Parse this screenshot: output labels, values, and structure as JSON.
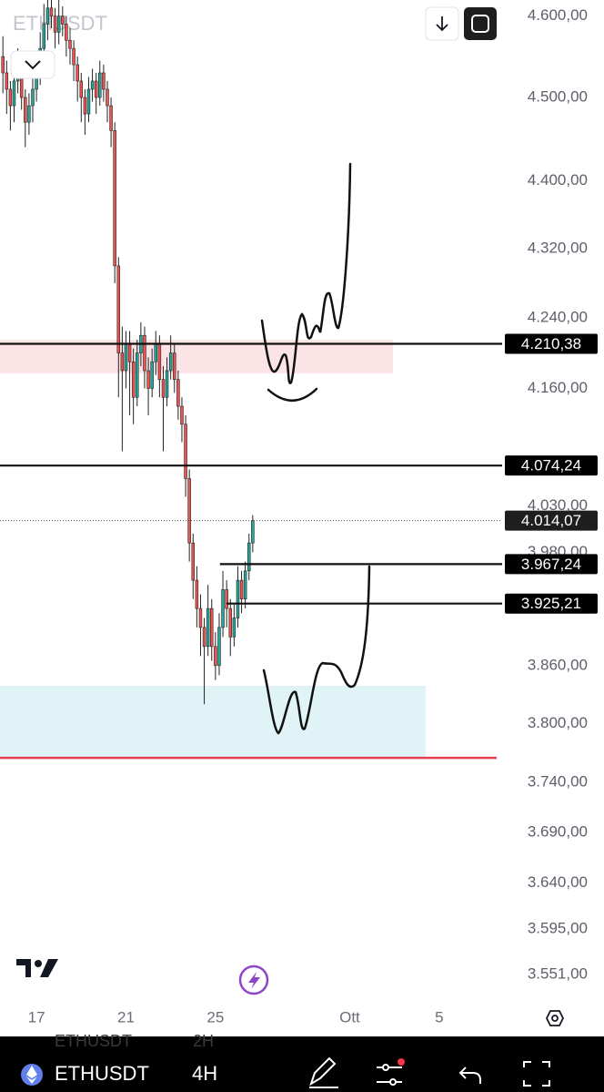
{
  "chart_data": {
    "type": "candlestick",
    "log_scale": true,
    "ylim": [
      3525,
      4620
    ],
    "xlim": [
      15.37,
      37.65
    ],
    "yticks": [
      {
        "value": 4600,
        "label": "4.600,00"
      },
      {
        "value": 4500,
        "label": "4.500,00"
      },
      {
        "value": 4400,
        "label": "4.400,00"
      },
      {
        "value": 4320,
        "label": "4.320,00"
      },
      {
        "value": 4240,
        "label": "4.240,00"
      },
      {
        "value": 4160,
        "label": "4.160,00"
      },
      {
        "value": 4030,
        "label": "4.030,00"
      },
      {
        "value": 3980,
        "label": "3.980,00"
      },
      {
        "value": 3860,
        "label": "3.860,00"
      },
      {
        "value": 3800,
        "label": "3.800,00"
      },
      {
        "value": 3740,
        "label": "3.740,00"
      },
      {
        "value": 3690,
        "label": "3.690,00"
      },
      {
        "value": 3640,
        "label": "3.640,00"
      },
      {
        "value": 3595,
        "label": "3.595,00"
      },
      {
        "value": 3551,
        "label": "3.551,00"
      }
    ],
    "xticks": [
      17,
      21,
      25,
      {
        "value": 31,
        "label": "Ott"
      },
      {
        "value": 35,
        "label": "5"
      }
    ],
    "up_color": "#26a69a",
    "down_color": "#ef5350",
    "wick_color": "#222222",
    "x": [
      15.5,
      15.667,
      15.833,
      16,
      16.167,
      16.333,
      16.5,
      16.667,
      16.833,
      17,
      17.167,
      17.333,
      17.5,
      17.667,
      17.833,
      18,
      18.167,
      18.333,
      18.5,
      18.667,
      18.833,
      19,
      19.167,
      19.333,
      19.5,
      19.667,
      19.833,
      20,
      20.167,
      20.333,
      20.5,
      20.667,
      20.833,
      21,
      21.167,
      21.333,
      21.5,
      21.667,
      21.833,
      22,
      22.167,
      22.333,
      22.5,
      22.667,
      22.833,
      23,
      23.167,
      23.333,
      23.5,
      23.667,
      23.833,
      24,
      24.167,
      24.333,
      24.5,
      24.667,
      24.833,
      25,
      25.167,
      25.333,
      25.5,
      25.667,
      25.833,
      26,
      26.167,
      26.333,
      26.5,
      26.667
    ],
    "candles": [
      [
        4550,
        4575,
        4505,
        4530
      ],
      [
        4530,
        4545,
        4480,
        4510
      ],
      [
        4510,
        4520,
        4460,
        4490
      ],
      [
        4490,
        4535,
        4470,
        4520
      ],
      [
        4520,
        4560,
        4505,
        4540
      ],
      [
        4540,
        4550,
        4485,
        4500
      ],
      [
        4500,
        4510,
        4440,
        4470
      ],
      [
        4470,
        4505,
        4455,
        4490
      ],
      [
        4490,
        4525,
        4470,
        4510
      ],
      [
        4510,
        4550,
        4495,
        4530
      ],
      [
        4530,
        4580,
        4515,
        4560
      ],
      [
        4560,
        4615,
        4545,
        4590
      ],
      [
        4590,
        4625,
        4570,
        4610
      ],
      [
        4610,
        4625,
        4585,
        4600
      ],
      [
        4600,
        4610,
        4560,
        4580
      ],
      [
        4580,
        4620,
        4565,
        4600
      ],
      [
        4600,
        4612,
        4575,
        4590
      ],
      [
        4590,
        4600,
        4550,
        4570
      ],
      [
        4570,
        4585,
        4540,
        4560
      ],
      [
        4560,
        4570,
        4520,
        4540
      ],
      [
        4540,
        4550,
        4495,
        4520
      ],
      [
        4520,
        4530,
        4470,
        4500
      ],
      [
        4500,
        4510,
        4455,
        4480
      ],
      [
        4480,
        4525,
        4470,
        4510
      ],
      [
        4510,
        4535,
        4495,
        4520
      ],
      [
        4520,
        4530,
        4480,
        4500
      ],
      [
        4500,
        4545,
        4490,
        4530
      ],
      [
        4530,
        4540,
        4495,
        4510
      ],
      [
        4510,
        4520,
        4470,
        4490
      ],
      [
        4490,
        4500,
        4440,
        4460
      ],
      [
        4460,
        4470,
        4280,
        4300
      ],
      [
        4300,
        4310,
        4150,
        4200
      ],
      [
        4200,
        4230,
        4090,
        4180
      ],
      [
        4180,
        4225,
        4160,
        4210
      ],
      [
        4210,
        4225,
        4130,
        4190
      ],
      [
        4190,
        4205,
        4120,
        4150
      ],
      [
        4150,
        4215,
        4140,
        4200
      ],
      [
        4200,
        4235,
        4185,
        4220
      ],
      [
        4220,
        4230,
        4160,
        4180
      ],
      [
        4180,
        4195,
        4130,
        4160
      ],
      [
        4160,
        4205,
        4150,
        4190
      ],
      [
        4190,
        4225,
        4175,
        4210
      ],
      [
        4210,
        4220,
        4150,
        4170
      ],
      [
        4170,
        4185,
        4090,
        4150
      ],
      [
        4150,
        4195,
        4140,
        4180
      ],
      [
        4180,
        4220,
        4170,
        4200
      ],
      [
        4200,
        4210,
        4155,
        4170
      ],
      [
        4170,
        4180,
        4125,
        4140
      ],
      [
        4140,
        4150,
        4100,
        4120
      ],
      [
        4120,
        4130,
        4040,
        4060
      ],
      [
        4060,
        4070,
        3970,
        3990
      ],
      [
        3990,
        4000,
        3930,
        3950
      ],
      [
        3950,
        3965,
        3900,
        3920
      ],
      [
        3920,
        3935,
        3870,
        3900
      ],
      [
        3900,
        3910,
        3820,
        3880
      ],
      [
        3880,
        3945,
        3870,
        3920
      ],
      [
        3920,
        3930,
        3865,
        3880
      ],
      [
        3880,
        3895,
        3845,
        3860
      ],
      [
        3860,
        3915,
        3850,
        3900
      ],
      [
        3900,
        3960,
        3890,
        3940
      ],
      [
        3940,
        3950,
        3900,
        3920
      ],
      [
        3920,
        3930,
        3870,
        3890
      ],
      [
        3890,
        3925,
        3880,
        3910
      ],
      [
        3910,
        3965,
        3900,
        3950
      ],
      [
        3950,
        3960,
        3915,
        3930
      ],
      [
        3930,
        3970,
        3920,
        3960
      ],
      [
        3960,
        4000,
        3950,
        3990
      ],
      [
        3990,
        4020,
        3980,
        4014.07
      ]
    ],
    "price_lines": [
      {
        "value": 4210.38,
        "label": "4.210,38",
        "from": 15.37,
        "style": "solid"
      },
      {
        "value": 4074.24,
        "label": "4.074,24",
        "from": 15.37,
        "style": "solid"
      },
      {
        "value": 4014.07,
        "label": "4.014,07",
        "from": 15.37,
        "style": "dotted"
      },
      {
        "value": 3967.24,
        "label": "3.967,24",
        "from": 25.2,
        "style": "solid"
      },
      {
        "value": 3925.21,
        "label": "3.925,21",
        "from": 25.5,
        "style": "solid"
      }
    ],
    "zones": [
      {
        "top": 4215,
        "bottom": 4177,
        "to": 32.93,
        "color": "#fce4e6"
      },
      {
        "top": 3839,
        "bottom": 3764,
        "to": 34.4,
        "color": "#e0f4f8"
      }
    ],
    "levels": [
      {
        "value": 3765,
        "to": 37.57,
        "color": "#e5404f"
      }
    ]
  },
  "ui": {
    "watermark": "ETHUSDT",
    "ghost_symbol": "ETHUSDT",
    "ghost_interval": "2H",
    "symbol": "ETHUSDT",
    "interval": "4H"
  }
}
